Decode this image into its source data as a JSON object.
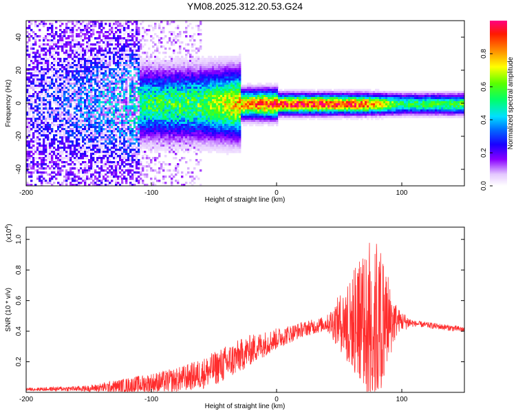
{
  "title": "YM08.2025.312.20.53.G24",
  "chart_data": [
    {
      "type": "heatmap",
      "title": "YM08.2025.312.20.53.G24",
      "xlabel": "Height of straight line (km)",
      "ylabel": "Frequency (Hz)",
      "xlim": [
        -200,
        150
      ],
      "ylim": [
        -50,
        50
      ],
      "xticks": [
        -200,
        -100,
        0,
        100
      ],
      "yticks": [
        -40,
        -20,
        0,
        20,
        40
      ],
      "colorbar": {
        "label": "Normalized spectral amplitude",
        "range": [
          0,
          1
        ],
        "ticks": [
          0.0,
          0.2,
          0.4,
          0.6,
          0.8
        ]
      },
      "description_ridge": [
        {
          "x": -200,
          "amp": 0.3
        },
        {
          "x": -110,
          "amp": 0.55
        },
        {
          "x": -60,
          "amp": 0.6
        },
        {
          "x": -20,
          "amp": 0.85
        },
        {
          "x": 0,
          "amp": 0.95
        },
        {
          "x": 40,
          "amp": 0.95
        },
        {
          "x": 70,
          "amp": 0.9
        },
        {
          "x": 100,
          "amp": 0.55
        },
        {
          "x": 150,
          "amp": 0.6
        }
      ]
    },
    {
      "type": "line",
      "xlabel": "Height of straight line (km)",
      "ylabel": "SNR (10 * v/v)",
      "yscale_label": "(x10",
      "yscale_exp": "4",
      "xlim": [
        -200,
        150
      ],
      "ylim": [
        0,
        1.08
      ],
      "xticks": [
        -200,
        -100,
        0,
        100
      ],
      "yticks": [
        0.2,
        0.4,
        0.6,
        0.8,
        1.0
      ],
      "color": "#ff2d2d",
      "envelope": [
        {
          "x": -200,
          "base": 0.02,
          "amp": 0.01
        },
        {
          "x": -150,
          "base": 0.025,
          "amp": 0.02
        },
        {
          "x": -110,
          "base": 0.05,
          "amp": 0.06
        },
        {
          "x": -80,
          "base": 0.08,
          "amp": 0.08
        },
        {
          "x": -60,
          "base": 0.12,
          "amp": 0.1
        },
        {
          "x": -40,
          "base": 0.19,
          "amp": 0.12
        },
        {
          "x": -20,
          "base": 0.28,
          "amp": 0.1
        },
        {
          "x": 0,
          "base": 0.35,
          "amp": 0.07
        },
        {
          "x": 20,
          "base": 0.41,
          "amp": 0.05
        },
        {
          "x": 40,
          "base": 0.45,
          "amp": 0.05
        },
        {
          "x": 50,
          "base": 0.46,
          "amp": 0.18
        },
        {
          "x": 60,
          "base": 0.45,
          "amp": 0.3
        },
        {
          "x": 70,
          "base": 0.45,
          "amp": 0.42
        },
        {
          "x": 78,
          "base": 0.45,
          "amp": 0.55
        },
        {
          "x": 88,
          "base": 0.46,
          "amp": 0.3
        },
        {
          "x": 97,
          "base": 0.47,
          "amp": 0.08
        },
        {
          "x": 110,
          "base": 0.45,
          "amp": 0.02
        },
        {
          "x": 150,
          "base": 0.41,
          "amp": 0.02
        }
      ]
    }
  ]
}
